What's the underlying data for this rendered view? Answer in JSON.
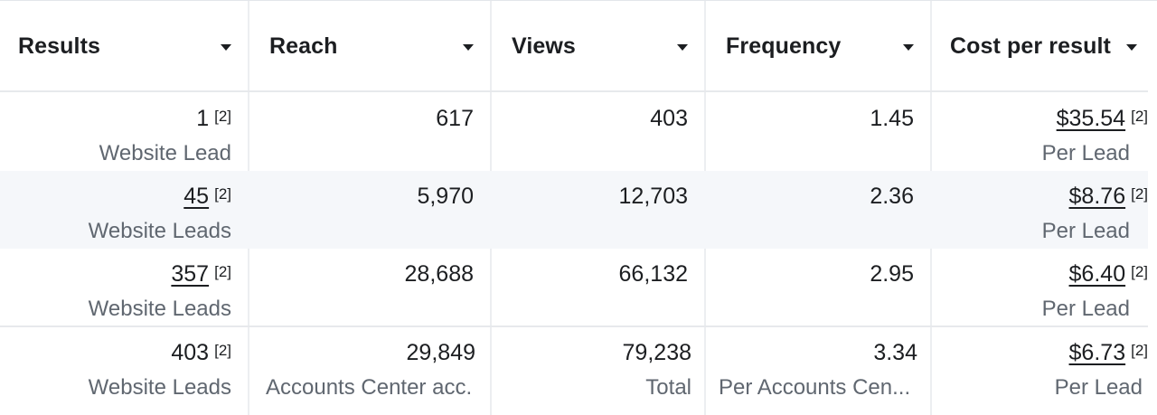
{
  "columns": [
    {
      "label": "Results"
    },
    {
      "label": "Reach"
    },
    {
      "label": "Views"
    },
    {
      "label": "Frequency"
    },
    {
      "label": "Cost per result"
    }
  ],
  "footnote": "[2]",
  "rows": [
    {
      "results": {
        "value": "1",
        "sub": "Website Lead"
      },
      "reach": {
        "value": "617"
      },
      "views": {
        "value": "403"
      },
      "frequency": {
        "value": "1.45"
      },
      "cost": {
        "value": "$35.54",
        "sub": "Per Lead"
      }
    },
    {
      "results": {
        "value": "45",
        "sub": "Website Leads"
      },
      "reach": {
        "value": "5,970"
      },
      "views": {
        "value": "12,703"
      },
      "frequency": {
        "value": "2.36"
      },
      "cost": {
        "value": "$8.76",
        "sub": "Per Lead"
      }
    },
    {
      "results": {
        "value": "357",
        "sub": "Website Leads"
      },
      "reach": {
        "value": "28,688"
      },
      "views": {
        "value": "66,132"
      },
      "frequency": {
        "value": "2.95"
      },
      "cost": {
        "value": "$6.40",
        "sub": "Per Lead"
      }
    }
  ],
  "total": {
    "results": {
      "value": "403",
      "sub": "Website Leads"
    },
    "reach": {
      "value": "29,849",
      "sub": "Accounts Center acc."
    },
    "views": {
      "value": "79,238",
      "sub": "Total"
    },
    "frequency": {
      "value": "3.34",
      "sub": "Per Accounts Cen..."
    },
    "cost": {
      "value": "$6.73",
      "sub": "Per Lead"
    }
  }
}
